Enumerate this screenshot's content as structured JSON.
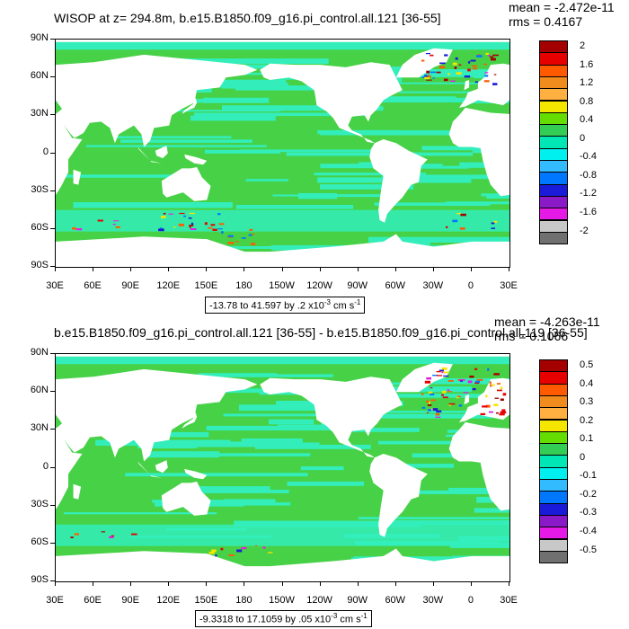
{
  "panels": [
    {
      "title": "WISOP at z= 294.8m, b.e15.B1850.f09_g16.pi_control.all.121 [36-55]",
      "mean": "mean = -2.472e-11",
      "rms": "rms = 0.4167",
      "range_prefix": "-13.78 to 41.597 by .2 x10",
      "range_exp": "-3",
      "range_units": " cm s",
      "range_units_exp": "-1",
      "legend_labels": [
        "2",
        "1.6",
        "1.2",
        "0.8",
        "0.4",
        "0",
        "-0.4",
        "-0.8",
        "-1.2",
        "-1.6",
        "-2"
      ]
    },
    {
      "title": "b.e15.B1850.f09_g16.pi_control.all.121 [36-55] - b.e15.B1850.f09_g16.pi_control.all.119 [36-55]",
      "mean": "mean = -4.263e-11",
      "rms": "rms = 0.1066",
      "range_prefix": "-9.3318 to 17.1059 by .05 x10",
      "range_exp": "-3",
      "range_units": " cm s",
      "range_units_exp": "-1",
      "legend_labels": [
        "0.5",
        "0.4",
        "0.3",
        "0.2",
        "0.1",
        "0",
        "-0.1",
        "-0.2",
        "-0.3",
        "-0.4",
        "-0.5"
      ]
    }
  ],
  "lat_labels": [
    "90N",
    "60N",
    "30N",
    "0",
    "30S",
    "60S",
    "90S"
  ],
  "lon_labels": [
    "30E",
    "60E",
    "90E",
    "120E",
    "150E",
    "180",
    "150W",
    "120W",
    "90W",
    "60W",
    "30W",
    "0",
    "30E"
  ],
  "colors": {
    "land": "#ffffff",
    "ocean_main": "#47d147",
    "ocean_band": "#33eebb",
    "legend": [
      "#a50000",
      "#e60000",
      "#ff5a00",
      "#f08c1e",
      "#ffb040",
      "#f5e600",
      "#66dd00",
      "#33cc55",
      "#00e6b4",
      "#00f0f0",
      "#33bbff",
      "#0077ff",
      "#1a1ad9",
      "#8a1ac7",
      "#e61ae6",
      "#c8c8c8",
      "#707070"
    ]
  }
}
